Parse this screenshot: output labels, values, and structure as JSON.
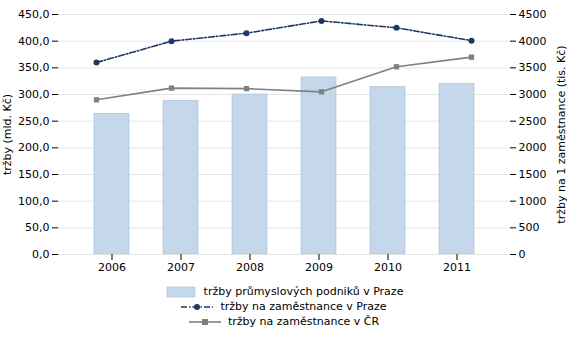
{
  "chart_data": {
    "type": "bar",
    "categories": [
      "2006",
      "2007",
      "2008",
      "2009",
      "2010",
      "2011"
    ],
    "series": [
      {
        "name": "tržby průmyslových podniků v Praze",
        "type": "bar",
        "color": "#c5d8eb",
        "values": [
          264,
          288,
          300,
          332,
          314,
          320
        ]
      },
      {
        "name": "tržby na zaměstnance v Praze",
        "type": "line",
        "axis": "y2",
        "color": "#1f3864",
        "line_style": "dashdot",
        "marker": "circle",
        "values": [
          3600,
          4000,
          4150,
          4380,
          4250,
          4010
        ]
      },
      {
        "name": "tržby na zaměstnance v ČR",
        "type": "line",
        "axis": "y2",
        "color": "#808080",
        "line_style": "solid",
        "marker": "square",
        "values": [
          2900,
          3120,
          3110,
          3050,
          3520,
          3700
        ]
      }
    ],
    "ylabel": "tržby (mld. Kč)",
    "y2label": "tržby na 1 zaměstnance (tis. Kč)",
    "ylim": [
      0,
      450
    ],
    "yticks": [
      {
        "value": 0,
        "label": "0,0"
      },
      {
        "value": 50,
        "label": "50,0"
      },
      {
        "value": 100,
        "label": "100,0"
      },
      {
        "value": 150,
        "label": "150,0"
      },
      {
        "value": 200,
        "label": "200,0"
      },
      {
        "value": 250,
        "label": "250,0"
      },
      {
        "value": 300,
        "label": "300,0"
      },
      {
        "value": 350,
        "label": "350,0"
      },
      {
        "value": 400,
        "label": "400,0"
      },
      {
        "value": 450,
        "label": "450,0"
      }
    ],
    "y2lim": [
      0,
      4500
    ],
    "y2ticks": [
      0,
      500,
      1000,
      1500,
      2000,
      2500,
      3000,
      3500,
      4000,
      4500
    ],
    "grid": true,
    "legend": "bottom"
  }
}
